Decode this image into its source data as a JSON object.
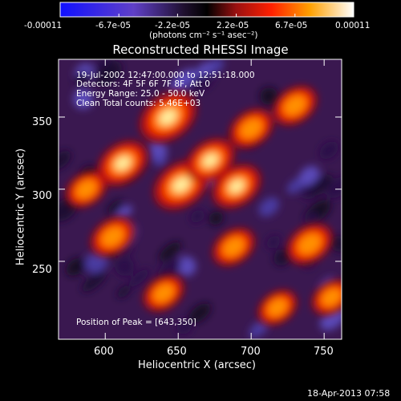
{
  "colorbar": {
    "tick_labels": [
      "-0.00011",
      "-6.7e-05",
      "-2.2e-05",
      "2.2e-05",
      "6.7e-05",
      "0.00011"
    ],
    "unit_label": "(photons cm⁻² s⁻¹ asec⁻²)"
  },
  "chart_data": {
    "type": "heatmap",
    "title": "Reconstructed RHESSI Image",
    "xlabel": "Heliocentric X (arcsec)",
    "ylabel": "Heliocentric Y (arcsec)",
    "xlim": [
      568,
      762
    ],
    "ylim": [
      196,
      390
    ],
    "x_ticks": [
      600,
      650,
      700,
      750
    ],
    "y_ticks": [
      250,
      300,
      350
    ],
    "color_range": [
      -0.00011,
      0.00011
    ],
    "annotations": [
      "19-Jul-2002 12:47:00.000 to 12:51:18.000",
      "Detectors: 4F 5F 6F 7F 8F, Att 0",
      "Energy Range: 25.0 - 50.0 keV",
      "Clean    Total counts: 5.46E+03"
    ],
    "peak_text": "Position of Peak = [643,350]",
    "peak_position": [
      643,
      350
    ],
    "bright_sources": [
      {
        "x": 643,
        "y": 350,
        "strength": 1.0
      },
      {
        "x": 652,
        "y": 303,
        "strength": 0.95
      },
      {
        "x": 612,
        "y": 318,
        "strength": 0.8
      },
      {
        "x": 672,
        "y": 320,
        "strength": 0.75
      },
      {
        "x": 690,
        "y": 302,
        "strength": 0.75
      },
      {
        "x": 700,
        "y": 342,
        "strength": 0.6
      },
      {
        "x": 605,
        "y": 267,
        "strength": 0.6
      },
      {
        "x": 740,
        "y": 262,
        "strength": 0.65
      },
      {
        "x": 730,
        "y": 358,
        "strength": 0.6
      },
      {
        "x": 688,
        "y": 260,
        "strength": 0.55
      },
      {
        "x": 640,
        "y": 228,
        "strength": 0.5
      },
      {
        "x": 587,
        "y": 300,
        "strength": 0.5
      },
      {
        "x": 755,
        "y": 225,
        "strength": 0.45
      },
      {
        "x": 718,
        "y": 218,
        "strength": 0.45
      }
    ]
  },
  "timestamp": "18-Apr-2013 07:58"
}
